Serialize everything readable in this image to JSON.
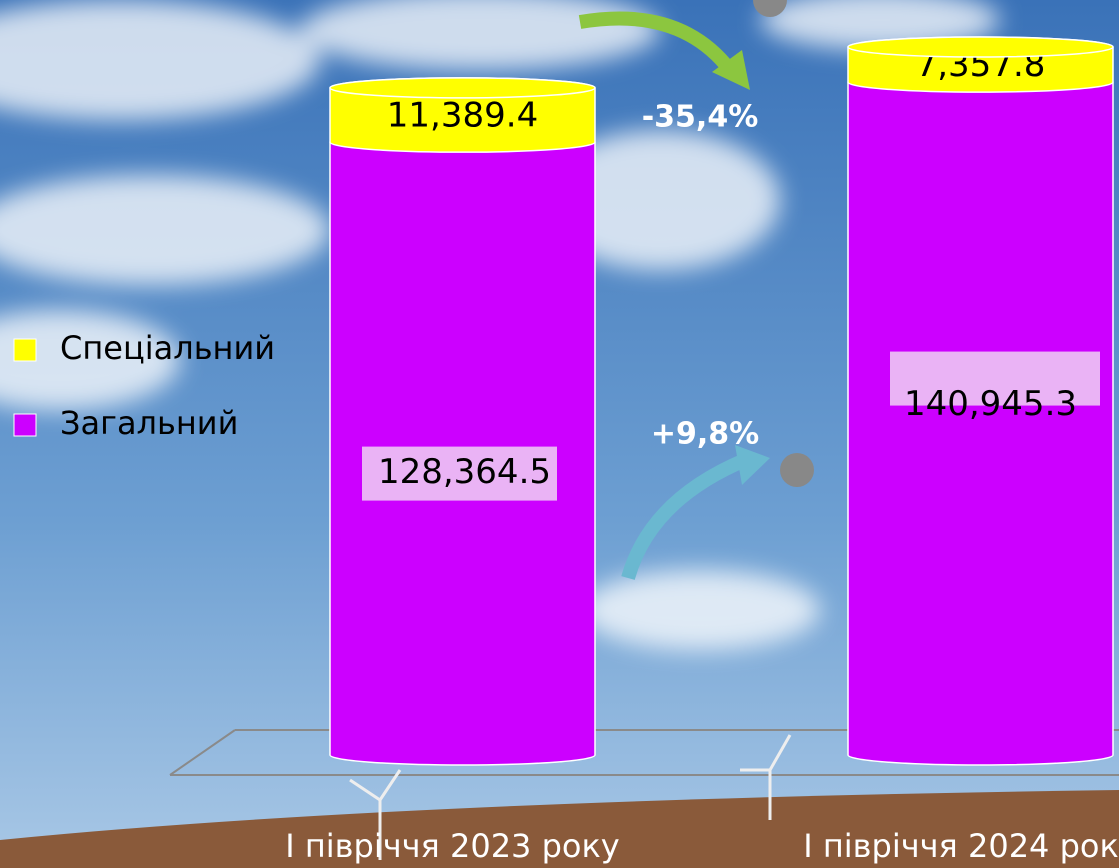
{
  "chart_data": {
    "type": "stacked-cylinder",
    "categories": [
      "І півріччя 2023 року",
      "І півріччя 2024 року"
    ],
    "series": [
      {
        "name": "Загальний",
        "color": "#cc00ff",
        "values": [
          128364.5,
          140945.3
        ],
        "value_labels": [
          "128,364.5",
          "140,945.3"
        ]
      },
      {
        "name": "Спеціальний",
        "color": "#ffff00",
        "values": [
          11389.4,
          7357.8
        ],
        "value_labels": [
          "11,389.4",
          "7,357.8"
        ]
      }
    ],
    "annotations": [
      "-35,4%",
      "+9,8%"
    ],
    "legend": "left"
  }
}
